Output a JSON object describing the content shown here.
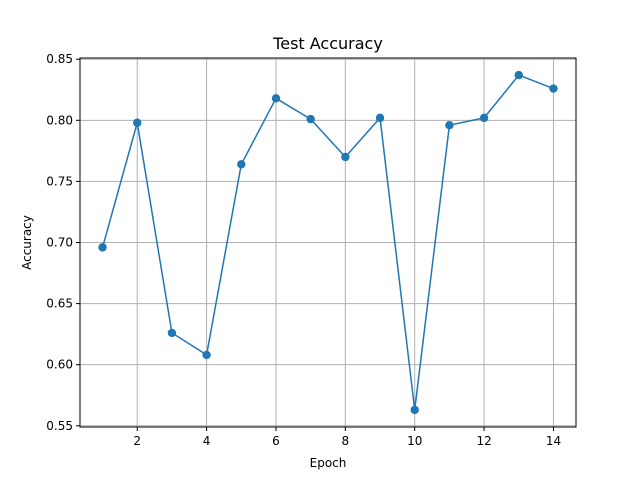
{
  "chart_data": {
    "type": "line",
    "title": "Test Accuracy",
    "xlabel": "Epoch",
    "ylabel": "Accuracy",
    "x": [
      1,
      2,
      3,
      4,
      5,
      6,
      7,
      8,
      9,
      10,
      11,
      12,
      13,
      14
    ],
    "series": [
      {
        "name": "",
        "values": [
          0.696,
          0.798,
          0.626,
          0.608,
          0.764,
          0.818,
          0.801,
          0.77,
          0.802,
          0.563,
          0.796,
          0.802,
          0.837,
          0.826
        ],
        "color": "#1f77b4",
        "marker": "circle"
      }
    ],
    "xticks": [
      2,
      4,
      6,
      8,
      10,
      12,
      14
    ],
    "yticks": [
      0.55,
      0.6,
      0.65,
      0.7,
      0.75,
      0.8,
      0.85
    ],
    "ytick_labels": [
      "0.55",
      "0.60",
      "0.65",
      "0.70",
      "0.75",
      "0.80",
      "0.85"
    ],
    "xlim": [
      0.35,
      14.65
    ],
    "ylim": [
      0.549,
      0.851
    ],
    "grid": true,
    "legend": "none"
  }
}
